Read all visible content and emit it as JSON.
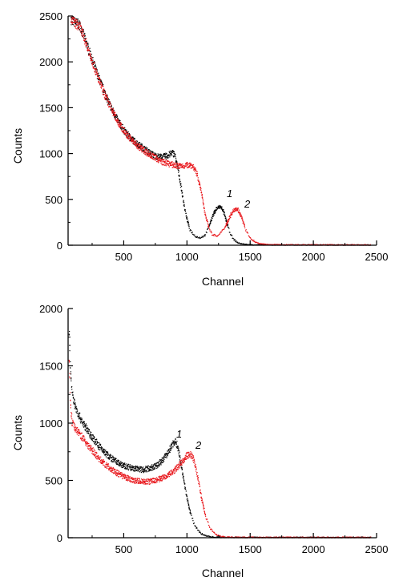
{
  "chart_data": [
    {
      "type": "scatter",
      "title": "",
      "xlabel": "Channel",
      "ylabel": "Counts",
      "xlim": [
        60,
        2500
      ],
      "ylim": [
        0,
        2500
      ],
      "xticks": [
        500,
        1000,
        1500,
        2000,
        2500
      ],
      "yticks": [
        0,
        500,
        1000,
        1500,
        2000,
        2500
      ],
      "xtick_labels": [
        "500",
        "1000",
        "1500",
        "2000",
        "2500"
      ],
      "ytick_labels": [
        "0",
        "500",
        "1000",
        "1500",
        "2000",
        "2500"
      ],
      "grid": false,
      "annotations": [
        {
          "text": "1",
          "x": 1280,
          "y": 560
        },
        {
          "text": "2",
          "x": 1420,
          "y": 440
        }
      ],
      "series": [
        {
          "label": "1",
          "color": "#000000",
          "x": [
            80,
            150,
            200,
            250,
            300,
            350,
            400,
            450,
            500,
            550,
            600,
            650,
            700,
            750,
            800,
            850,
            880,
            900,
            930,
            960,
            990,
            1020,
            1060,
            1100,
            1140,
            1170,
            1200,
            1230,
            1260,
            1280,
            1300,
            1330,
            1360,
            1400,
            1450,
            1500,
            1600,
            1800,
            2000,
            2200,
            2450
          ],
          "y": [
            2460,
            2400,
            2210,
            2010,
            1820,
            1650,
            1490,
            1360,
            1250,
            1170,
            1110,
            1060,
            1010,
            970,
            960,
            980,
            1010,
            990,
            800,
            550,
            320,
            170,
            100,
            80,
            110,
            200,
            320,
            400,
            420,
            390,
            300,
            160,
            70,
            25,
            10,
            5,
            3,
            2,
            2,
            2,
            2
          ]
        },
        {
          "label": "2",
          "color": "#e8161b",
          "x": [
            80,
            150,
            200,
            250,
            300,
            350,
            400,
            450,
            500,
            550,
            600,
            650,
            700,
            750,
            800,
            850,
            900,
            950,
            990,
            1020,
            1050,
            1080,
            1110,
            1140,
            1170,
            1200,
            1240,
            1280,
            1320,
            1350,
            1380,
            1400,
            1430,
            1460,
            1500,
            1550,
            1600,
            1700,
            2000,
            2450
          ],
          "y": [
            2460,
            2380,
            2200,
            2000,
            1800,
            1630,
            1480,
            1350,
            1240,
            1160,
            1090,
            1040,
            990,
            950,
            910,
            890,
            870,
            860,
            870,
            880,
            850,
            760,
            580,
            350,
            190,
            110,
            100,
            160,
            260,
            350,
            400,
            390,
            300,
            170,
            70,
            25,
            10,
            5,
            3,
            2
          ]
        }
      ]
    },
    {
      "type": "scatter",
      "title": "",
      "xlabel": "Channel",
      "ylabel": "Counts",
      "xlim": [
        60,
        2500
      ],
      "ylim": [
        0,
        2000
      ],
      "xticks": [
        500,
        1000,
        1500,
        2000,
        2500
      ],
      "yticks": [
        0,
        500,
        1000,
        1500,
        2000
      ],
      "xtick_labels": [
        "500",
        "1000",
        "1500",
        "2000",
        "2500"
      ],
      "ytick_labels": [
        "0",
        "500",
        "1000",
        "1500",
        "2000"
      ],
      "grid": false,
      "annotations": [
        {
          "text": "1",
          "x": 930,
          "y": 890
        },
        {
          "text": "2",
          "x": 1080,
          "y": 780
        }
      ],
      "series": [
        {
          "label": "1",
          "color": "#000000",
          "x": [
            65,
            75,
            90,
            110,
            140,
            180,
            220,
            260,
            300,
            350,
            400,
            450,
            500,
            550,
            600,
            650,
            700,
            750,
            800,
            840,
            870,
            890,
            910,
            930,
            960,
            990,
            1020,
            1050,
            1080,
            1110,
            1150,
            1200,
            1300,
            1500,
            2000,
            2450
          ],
          "y": [
            1800,
            1450,
            1250,
            1160,
            1070,
            990,
            920,
            860,
            800,
            740,
            690,
            655,
            625,
            610,
            600,
            595,
            605,
            625,
            670,
            730,
            790,
            830,
            840,
            760,
            580,
            390,
            230,
            130,
            70,
            35,
            15,
            6,
            3,
            2,
            2,
            2
          ]
        },
        {
          "label": "2",
          "color": "#e8161b",
          "x": [
            65,
            75,
            90,
            110,
            140,
            180,
            220,
            260,
            300,
            350,
            400,
            450,
            500,
            550,
            600,
            650,
            700,
            750,
            800,
            850,
            900,
            950,
            990,
            1020,
            1040,
            1060,
            1080,
            1100,
            1120,
            1150,
            1180,
            1220,
            1260,
            1300,
            1400,
            1600,
            2000,
            2450
          ],
          "y": [
            1560,
            1150,
            1000,
            960,
            920,
            860,
            800,
            745,
            690,
            640,
            595,
            560,
            530,
            510,
            495,
            490,
            490,
            500,
            520,
            550,
            590,
            650,
            710,
            730,
            710,
            640,
            540,
            420,
            300,
            170,
            80,
            30,
            12,
            6,
            3,
            2,
            2,
            2
          ]
        }
      ]
    }
  ]
}
